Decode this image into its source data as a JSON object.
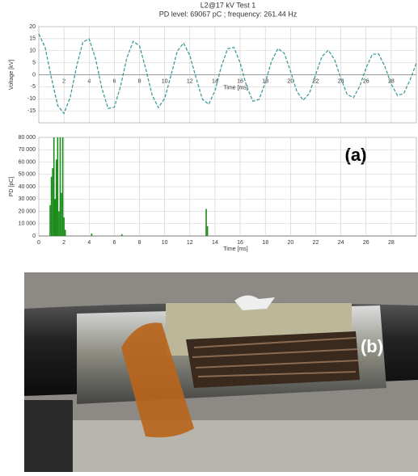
{
  "chart_data": [
    {
      "type": "line",
      "title": "L2@17 kV Test 1",
      "subtitle": "PD level: 69067 pC ; frequency: 261.44 Hz",
      "x_label": "Time [ms]",
      "y_label": "Voltage [kV]",
      "xlim": [
        0,
        30
      ],
      "xticks": [
        2,
        4,
        6,
        8,
        10,
        12,
        14,
        16,
        18,
        20,
        22,
        24,
        26,
        28
      ],
      "ylim": [
        -20,
        20
      ],
      "yticks": [
        -15,
        -10,
        -5,
        0,
        5,
        10,
        15,
        20
      ],
      "grid": true,
      "x": [
        0,
        0.5,
        1,
        1.5,
        2,
        2.5,
        3,
        3.5,
        4,
        4.5,
        5,
        5.5,
        6,
        6.5,
        7,
        7.5,
        8,
        8.5,
        9,
        9.5,
        10,
        10.5,
        11,
        11.5,
        12,
        12.5,
        13,
        13.5,
        14,
        14.5,
        15,
        15.5,
        16,
        16.5,
        17,
        17.5,
        18,
        18.5,
        19,
        19.5,
        20,
        20.5,
        21,
        21.5,
        22,
        22.5,
        23,
        23.5,
        24,
        24.5,
        25,
        25.5,
        26,
        26.5,
        27,
        27.5,
        28,
        28.5,
        29,
        29.5,
        30
      ],
      "values": [
        17,
        11.4,
        -1.2,
        -12.8,
        -16.1,
        -9.3,
        3.4,
        13.6,
        14.9,
        6.9,
        -5.4,
        -14,
        -13.5,
        -4.7,
        7.1,
        13.9,
        12,
        2.4,
        -8.4,
        -13.7,
        -9.8,
        -0.4,
        9.8,
        13.2,
        8,
        -1.4,
        -10.2,
        -12.3,
        -6.6,
        3.4,
        10.8,
        11.4,
        4.9,
        -4.6,
        -11,
        -10.3,
        -3.2,
        5.8,
        10.9,
        9,
        1.5,
        -6.9,
        -10.6,
        -7.7,
        0.1,
        7.6,
        10.2,
        6.3,
        -1.5,
        -8.2,
        -9.5,
        -4.8,
        2.8,
        8.5,
        8.7,
        3.4,
        -3.9,
        -8.6,
        -7.8,
        -2.1,
        4.8
      ],
      "color": "#3f9c9c"
    },
    {
      "type": "bar",
      "x_label": "Time [ms]",
      "y_label": "PD [pC]",
      "xlim": [
        0,
        30
      ],
      "xticks": [
        0,
        2,
        4,
        6,
        8,
        10,
        12,
        14,
        16,
        18,
        20,
        22,
        24,
        26,
        28
      ],
      "ylim": [
        0,
        80000
      ],
      "yticks": [
        0,
        {
          "value": 10000,
          "label": "10 000"
        },
        {
          "value": 20000,
          "label": "20 000"
        },
        {
          "value": 30000,
          "label": "30 000"
        },
        {
          "value": 40000,
          "label": "40 000"
        },
        {
          "value": 50000,
          "label": "50 000"
        },
        {
          "value": 60000,
          "label": "60 000"
        },
        {
          "value": 70000,
          "label": "70 000"
        },
        {
          "value": 80000,
          "label": "80 000"
        }
      ],
      "grid": true,
      "x": [
        0.9,
        1.0,
        1.1,
        1.2,
        1.3,
        1.4,
        1.5,
        1.6,
        1.7,
        1.8,
        1.9,
        2.0,
        2.1,
        4.2,
        6.6,
        13.3,
        13.4
      ],
      "values": [
        25000,
        48000,
        55000,
        80000,
        30000,
        62000,
        80000,
        20000,
        80000,
        35000,
        80000,
        15000,
        5000,
        2000,
        1500,
        22000,
        8000
      ],
      "color": "#1b8c1b"
    }
  ],
  "panel_labels": [
    "(a)",
    "(b)"
  ]
}
